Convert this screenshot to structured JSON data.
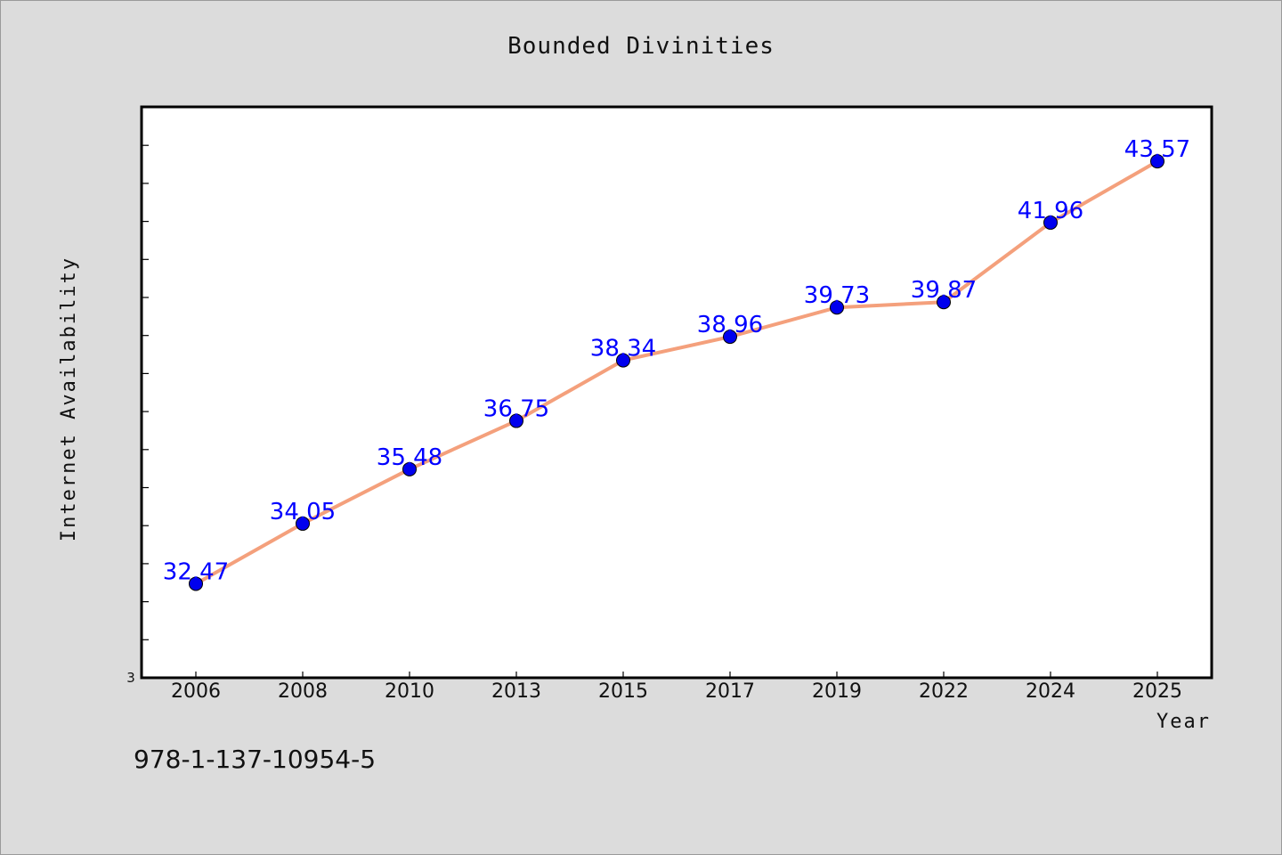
{
  "chart_data": {
    "type": "line",
    "title": "Bounded Divinities",
    "xlabel": "Year",
    "ylabel": "Internet Availability",
    "categories": [
      "2006",
      "2008",
      "2010",
      "2013",
      "2015",
      "2017",
      "2019",
      "2022",
      "2024",
      "2025"
    ],
    "series": [
      {
        "values": [
          32.47,
          34.05,
          35.48,
          36.75,
          38.34,
          38.96,
          39.73,
          39.87,
          41.96,
          43.57
        ],
        "line_color": "#f4a07c",
        "marker_color": "#0000ee",
        "label_color": "#0000ff"
      }
    ],
    "ylim": [
      30,
      45
    ],
    "y_tick_label": "3",
    "grid": false,
    "legend": "none"
  },
  "footer": {
    "isbn": "978-1-137-10954-5"
  }
}
